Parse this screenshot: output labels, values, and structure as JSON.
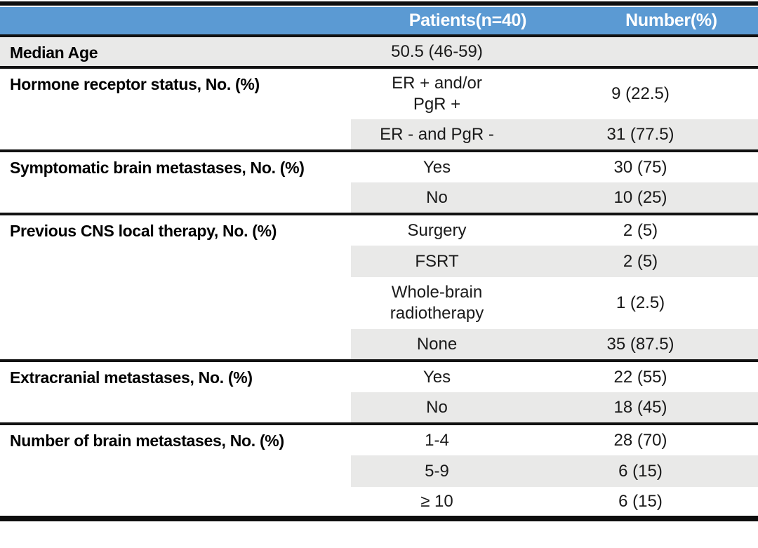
{
  "table": {
    "header": {
      "patients": "Patients(n=40)",
      "number": "Number(%)"
    },
    "groups": [
      {
        "label": "Median Age",
        "label_shaded": true,
        "rows": [
          {
            "value": "50.5 (46-59)",
            "number": "",
            "shaded": true
          }
        ]
      },
      {
        "label": "Hormone receptor status, No. (%)",
        "label_shaded": false,
        "rows": [
          {
            "value": "ER + and/or\nPgR +",
            "number": "9 (22.5)",
            "shaded": false,
            "two_line": true
          },
          {
            "value": "ER - and PgR -",
            "number": "31 (77.5)",
            "shaded": true
          }
        ]
      },
      {
        "label": "Symptomatic brain metastases, No. (%)",
        "label_shaded": false,
        "rows": [
          {
            "value": "Yes",
            "number": "30 (75)",
            "shaded": false
          },
          {
            "value": "No",
            "number": "10 (25)",
            "shaded": true
          }
        ]
      },
      {
        "label": "Previous CNS local therapy, No. (%)",
        "label_shaded": false,
        "rows": [
          {
            "value": "Surgery",
            "number": "2 (5)",
            "shaded": false
          },
          {
            "value": "FSRT",
            "number": "2 (5)",
            "shaded": true
          },
          {
            "value": "Whole-brain\nradiotherapy",
            "number": "1 (2.5)",
            "shaded": false,
            "two_line": true
          },
          {
            "value": "None",
            "number": "35 (87.5)",
            "shaded": true
          }
        ]
      },
      {
        "label": "Extracranial metastases, No. (%)",
        "label_shaded": false,
        "rows": [
          {
            "value": "Yes",
            "number": "22 (55)",
            "shaded": false
          },
          {
            "value": "No",
            "number": "18 (45)",
            "shaded": true
          }
        ]
      },
      {
        "label": "Number of brain metastases, No. (%)",
        "label_shaded": false,
        "rows": [
          {
            "value": "1-4",
            "number": "28 (70)",
            "shaded": false
          },
          {
            "value": "5-9",
            "number": "6 (15)",
            "shaded": true
          },
          {
            "value": "≥ 10",
            "number": "6 (15)",
            "shaded": false
          }
        ]
      }
    ],
    "colors": {
      "header_bg": "#5b9ad3",
      "header_text": "#ffffff",
      "shaded_bg": "#e9e9e8",
      "border": "#121212",
      "text": "#1a1a1a",
      "label_text": "#000000",
      "bar": "#0e0e0e"
    }
  }
}
